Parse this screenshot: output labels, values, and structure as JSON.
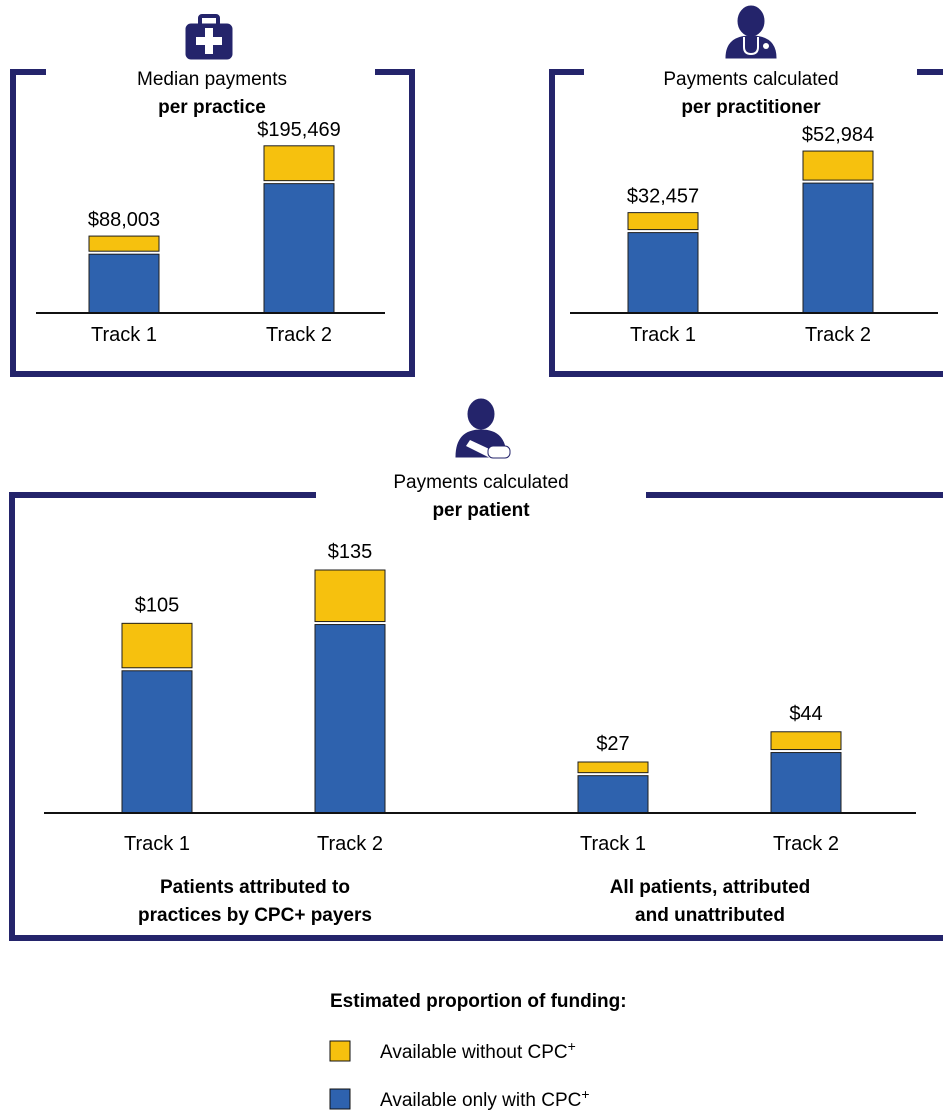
{
  "colors": {
    "frame": "#24246b",
    "available_only_with": "#2e62ae",
    "available_without": "#f6c10e",
    "icon": "#24246b",
    "axis": "#111111"
  },
  "chart_data": [
    {
      "id": "per-practice",
      "type": "bar",
      "stacked": true,
      "title_line1": "Median payments",
      "title_line2": "per practice",
      "icon": "medical-kit-icon",
      "categories": [
        "Track 1",
        "Track 2"
      ],
      "series": [
        {
          "name": "Available only with CPC+",
          "values": [
            70000,
            154000
          ]
        },
        {
          "name": "Available without CPC+",
          "values": [
            18003,
            41469
          ]
        }
      ],
      "totals_labels": [
        "$88,003",
        "$195,469"
      ],
      "ylim": [
        0,
        250000
      ]
    },
    {
      "id": "per-practitioner",
      "type": "bar",
      "stacked": true,
      "title_line1": "Payments calculated",
      "title_line2": "per practitioner",
      "icon": "doctor-stethoscope-icon",
      "categories": [
        "Track 1",
        "Track 2"
      ],
      "series": [
        {
          "name": "Available only with CPC+",
          "values": [
            26800,
            43300
          ]
        },
        {
          "name": "Available without CPC+",
          "values": [
            5657,
            9684
          ]
        }
      ],
      "totals_labels": [
        "$32,457",
        "$52,984"
      ],
      "ylim": [
        0,
        70000
      ]
    },
    {
      "id": "per-patient",
      "type": "bar",
      "stacked": true,
      "title_line1": "Payments calculated",
      "title_line2": "per patient",
      "icon": "patient-sling-icon",
      "categories": [
        "Track 1",
        "Track 2",
        "Track 1",
        "Track 2"
      ],
      "groups": [
        {
          "label_line1": "Patients attributed to",
          "label_line2": "practices by CPC+ payers",
          "categories": [
            "Track 1",
            "Track 2"
          ]
        },
        {
          "label_line1": "All patients, attributed",
          "label_line2": "and unattributed",
          "categories": [
            "Track 1",
            "Track 2"
          ]
        }
      ],
      "series": [
        {
          "name": "Available only with CPC+",
          "values": [
            80,
            106,
            21,
            34
          ]
        },
        {
          "name": "Available without CPC+",
          "values": [
            25,
            29,
            6,
            10
          ]
        }
      ],
      "totals_labels": [
        "$105",
        "$135",
        "$27",
        "$44"
      ],
      "ylim": [
        0,
        180
      ]
    }
  ],
  "legend": {
    "title": "Estimated proportion of funding:",
    "items": [
      {
        "label": "Available without CPC",
        "sup": "+",
        "swatch": "available_without"
      },
      {
        "label": "Available only with CPC",
        "sup": "+",
        "swatch": "available_only_with"
      }
    ]
  }
}
